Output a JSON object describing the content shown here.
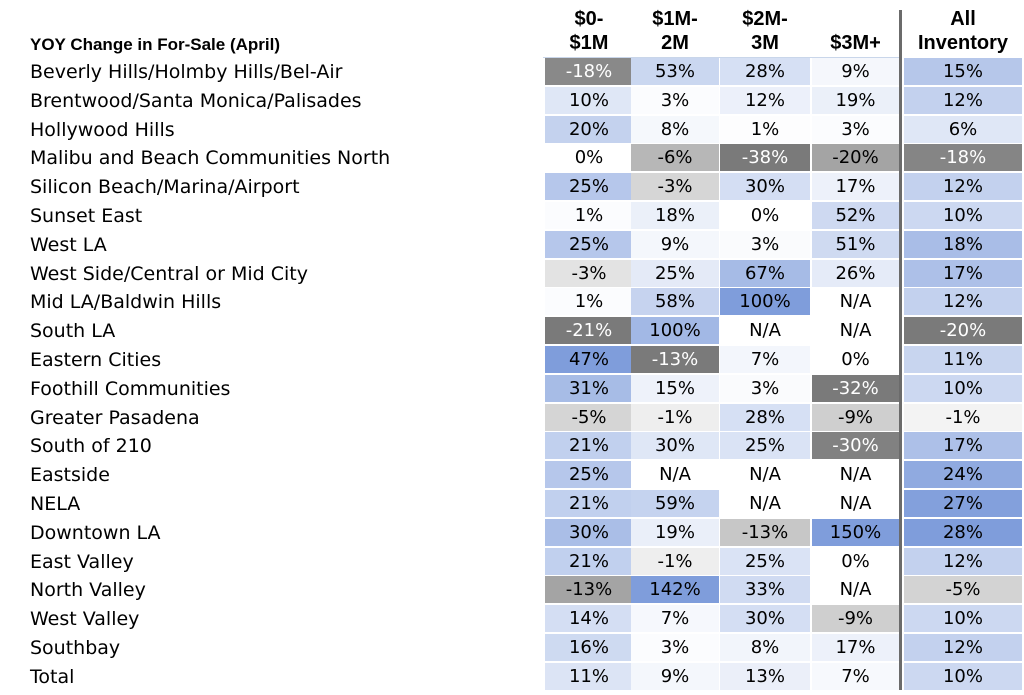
{
  "title": "YOY Change in For-Sale (April)",
  "columns": [
    {
      "line1": "$0-",
      "line2": "$1M"
    },
    {
      "line1": "$1M-",
      "line2": "2M"
    },
    {
      "line1": "$2M-",
      "line2": "3M"
    },
    {
      "line1": "",
      "line2": "$3M+"
    },
    {
      "line1": "All",
      "line2": "Inventory"
    }
  ],
  "colors": {
    "positive": "#7f9ddb",
    "negative": "#7a7a7a",
    "neutral": "#ffffff"
  },
  "chart_data": {
    "type": "heatmap",
    "title": "YOY Change in For-Sale (April)",
    "columns": [
      "$0-$1M",
      "$1M-2M",
      "$2M-3M",
      "$3M+",
      "All Inventory"
    ],
    "rows": [
      {
        "label": "Beverly Hills/Holmby Hills/Bel-Air",
        "values": [
          "-18%",
          "53%",
          "28%",
          "9%",
          "15%"
        ]
      },
      {
        "label": "Brentwood/Santa Monica/Palisades",
        "values": [
          "10%",
          "3%",
          "12%",
          "19%",
          "12%"
        ]
      },
      {
        "label": "Hollywood Hills",
        "values": [
          "20%",
          "8%",
          "1%",
          "3%",
          "6%"
        ]
      },
      {
        "label": "Malibu and Beach Communities North",
        "values": [
          "0%",
          "-6%",
          "-38%",
          "-20%",
          "-18%"
        ]
      },
      {
        "label": "Silicon Beach/Marina/Airport",
        "values": [
          "25%",
          "-3%",
          "30%",
          "17%",
          "12%"
        ]
      },
      {
        "label": "Sunset East",
        "values": [
          "1%",
          "18%",
          "0%",
          "52%",
          "10%"
        ]
      },
      {
        "label": "West LA",
        "values": [
          "25%",
          "9%",
          "3%",
          "51%",
          "18%"
        ]
      },
      {
        "label": "West Side/Central or Mid City",
        "values": [
          "-3%",
          "25%",
          "67%",
          "26%",
          "17%"
        ]
      },
      {
        "label": "Mid LA/Baldwin Hills",
        "values": [
          "1%",
          "58%",
          "100%",
          "N/A",
          "12%"
        ]
      },
      {
        "label": "South LA",
        "values": [
          "-21%",
          "100%",
          "N/A",
          "N/A",
          "-20%"
        ]
      },
      {
        "label": "Eastern Cities",
        "values": [
          "47%",
          "-13%",
          "7%",
          "0%",
          "11%"
        ]
      },
      {
        "label": "Foothill Communities",
        "values": [
          "31%",
          "15%",
          "3%",
          "-32%",
          "10%"
        ]
      },
      {
        "label": "Greater Pasadena",
        "values": [
          "-5%",
          "-1%",
          "28%",
          "-9%",
          "-1%"
        ]
      },
      {
        "label": "South of 210",
        "values": [
          "21%",
          "30%",
          "25%",
          "-30%",
          "17%"
        ]
      },
      {
        "label": "Eastside",
        "values": [
          "25%",
          "N/A",
          "N/A",
          "N/A",
          "24%"
        ]
      },
      {
        "label": "NELA",
        "values": [
          "21%",
          "59%",
          "N/A",
          "N/A",
          "27%"
        ]
      },
      {
        "label": "Downtown LA",
        "values": [
          "30%",
          "19%",
          "-13%",
          "150%",
          "28%"
        ]
      },
      {
        "label": "East Valley",
        "values": [
          "21%",
          "-1%",
          "25%",
          "0%",
          "12%"
        ]
      },
      {
        "label": "North Valley",
        "values": [
          "-13%",
          "142%",
          "33%",
          "N/A",
          "-5%"
        ]
      },
      {
        "label": "West Valley",
        "values": [
          "14%",
          "7%",
          "30%",
          "-9%",
          "10%"
        ]
      },
      {
        "label": "Southbay",
        "values": [
          "16%",
          "3%",
          "8%",
          "17%",
          "12%"
        ]
      },
      {
        "label": "Total",
        "values": [
          "11%",
          "9%",
          "13%",
          "7%",
          "10%"
        ]
      }
    ]
  }
}
